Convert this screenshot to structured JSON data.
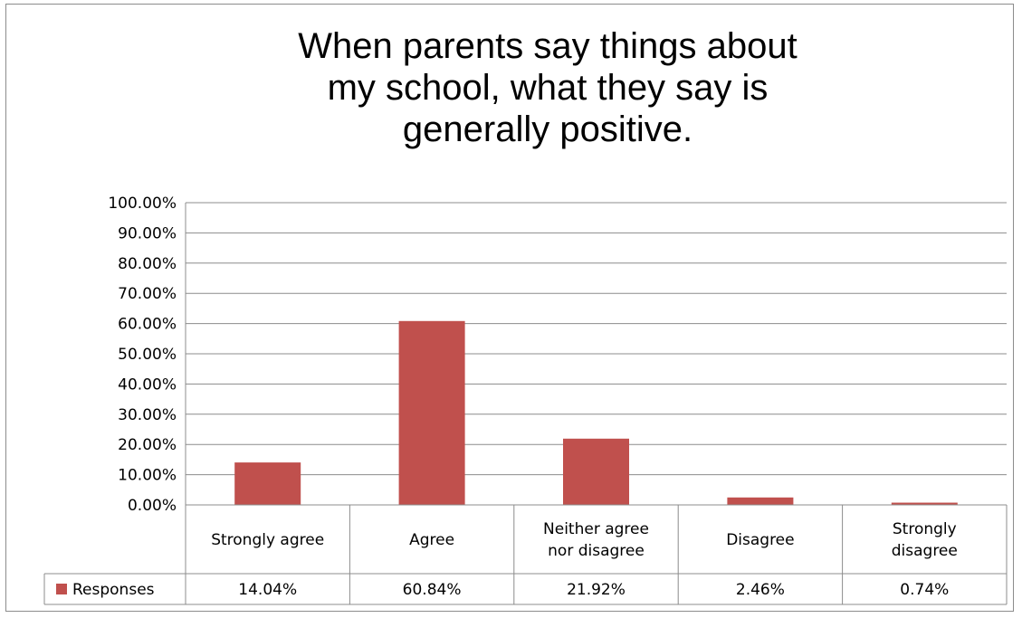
{
  "chart_data": {
    "type": "bar",
    "title": "When parents say things about my school, what they say is generally positive.",
    "categories": [
      [
        "Strongly agree"
      ],
      [
        "Agree"
      ],
      [
        "Neither agree",
        "nor disagree"
      ],
      [
        "Disagree"
      ],
      [
        "Strongly",
        "disagree"
      ]
    ],
    "series": [
      {
        "name": "Responses",
        "values": [
          14.04,
          60.84,
          21.92,
          2.46,
          0.74
        ],
        "display_values": [
          "14.04%",
          "60.84%",
          "21.92%",
          "2.46%",
          "0.74%"
        ],
        "color": "#c0504d"
      }
    ],
    "yticks": [
      "0.00%",
      "10.00%",
      "20.00%",
      "30.00%",
      "40.00%",
      "50.00%",
      "60.00%",
      "70.00%",
      "80.00%",
      "90.00%",
      "100.00%"
    ],
    "ylim": [
      0,
      100
    ],
    "grid": true,
    "legend": "data-table"
  }
}
